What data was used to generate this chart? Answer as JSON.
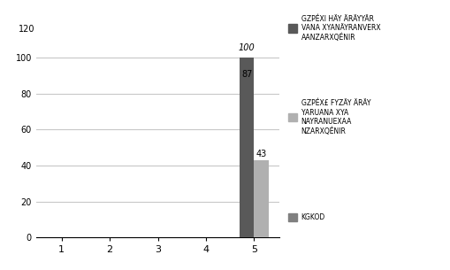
{
  "categories": [
    "1",
    "2",
    "3",
    "4",
    "5"
  ],
  "series": [
    {
      "color": "#595959",
      "values": [
        0,
        0,
        0,
        0,
        100
      ]
    },
    {
      "color": "#b0b0b0",
      "values": [
        0,
        0,
        0,
        0,
        43
      ]
    }
  ],
  "bar_label_0": "87",
  "bar_label_1": "43",
  "top_label": "100",
  "ylim": [
    0,
    120
  ],
  "yticks": [
    0,
    20,
    40,
    60,
    80,
    100
  ],
  "ytick_labels": [
    "0",
    "20",
    "40",
    "60",
    "80",
    "100"
  ],
  "top_ytick": "120",
  "bar_width": 0.3,
  "background_color": "#ffffff",
  "grid_color": "#c8c8c8",
  "legend_labels": [
    "GZPÉXI HÄY ÄRÄYYÄR\nVANA XYANÄYRANVERX\nAANZARXQÉNIR",
    "GZPÉX£ FYZÄY ÄRÄY\nYARUANA XYA\nNAYRANUEXAA\nNZARXQÉNIR",
    "KGKOD"
  ],
  "legend_colors": [
    "#595959",
    "#b0b0b0",
    "#808080"
  ]
}
